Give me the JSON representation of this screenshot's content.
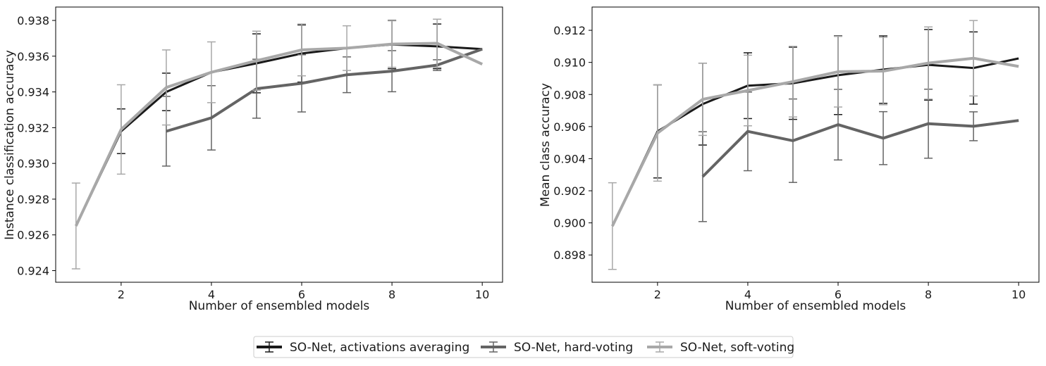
{
  "chart_data": [
    {
      "type": "line",
      "xlabel": "Number of ensembled models",
      "ylabel": "Instance classification accuracy",
      "xlim": [
        0.55,
        10.45
      ],
      "ylim": [
        0.92335,
        0.93875
      ],
      "xticks": [
        2,
        4,
        6,
        8,
        10
      ],
      "xtick_labels": [
        "2",
        "4",
        "6",
        "8",
        "10"
      ],
      "yticks": [
        0.924,
        0.926,
        0.928,
        0.93,
        0.932,
        0.934,
        0.936,
        0.938
      ],
      "ytick_labels": [
        "0.924",
        "0.926",
        "0.928",
        "0.930",
        "0.932",
        "0.934",
        "0.936",
        "0.938"
      ],
      "grid": false,
      "series": [
        {
          "name": "SO-Net, activations averaging",
          "color": "#1a1a1a",
          "x": [
            1,
            2,
            3,
            4,
            5,
            6,
            7,
            8,
            9,
            10
          ],
          "y": [
            0.9265,
            0.9318,
            0.934,
            0.9351,
            0.9356,
            0.93615,
            0.93645,
            0.93665,
            0.93655,
            0.9364
          ],
          "err": [
            null,
            0.00125,
            0.00105,
            null,
            0.00165,
            0.0016,
            null,
            0.00135,
            0.00125,
            null
          ]
        },
        {
          "name": "SO-Net, hard-voting",
          "color": "#646464",
          "x": [
            3,
            4,
            5,
            6,
            7,
            8,
            9,
            10
          ],
          "y": [
            0.9318,
            0.93255,
            0.93418,
            0.93448,
            0.93496,
            0.93516,
            0.9355,
            0.9364
          ],
          "err": [
            0.00195,
            0.0018,
            0.00165,
            0.0016,
            0.001,
            0.00115,
            0.0003,
            null
          ]
        },
        {
          "name": "SO-Net, soft-voting",
          "color": "#a8a8a8",
          "x": [
            1,
            2,
            3,
            4,
            5,
            6,
            7,
            8,
            9,
            10
          ],
          "y": [
            0.9265,
            0.9319,
            0.93425,
            0.9351,
            0.93575,
            0.93635,
            0.93645,
            0.93668,
            0.93672,
            0.93555
          ],
          "err": [
            0.0024,
            0.0025,
            0.0021,
            0.0017,
            0.00165,
            0.00145,
            0.00125,
            0.0013,
            0.00135,
            null
          ]
        }
      ]
    },
    {
      "type": "line",
      "xlabel": "Number of ensembled models",
      "ylabel": "Mean class accuracy",
      "xlim": [
        0.55,
        10.45
      ],
      "ylim": [
        0.8963,
        0.91345
      ],
      "xticks": [
        2,
        4,
        6,
        8,
        10
      ],
      "xtick_labels": [
        "2",
        "4",
        "6",
        "8",
        "10"
      ],
      "yticks": [
        0.898,
        0.9,
        0.902,
        0.904,
        0.906,
        0.908,
        0.91,
        0.912
      ],
      "ytick_labels": [
        "0.898",
        "0.900",
        "0.902",
        "0.904",
        "0.906",
        "0.908",
        "0.910",
        "0.912"
      ],
      "grid": false,
      "series": [
        {
          "name": "SO-Net, activations averaging",
          "color": "#1a1a1a",
          "x": [
            1,
            2,
            3,
            4,
            5,
            6,
            7,
            8,
            9,
            10
          ],
          "y": [
            0.8998,
            0.9057,
            0.9074,
            0.90855,
            0.9087,
            0.9092,
            0.90955,
            0.90985,
            0.90965,
            0.91025
          ],
          "err": [
            null,
            0.0029,
            0.00255,
            0.00205,
            0.00225,
            0.00245,
            0.0021,
            0.0022,
            0.00225,
            null
          ]
        },
        {
          "name": "SO-Net, hard-voting",
          "color": "#646464",
          "x": [
            3,
            4,
            5,
            6,
            7,
            8,
            9,
            10
          ],
          "y": [
            0.90288,
            0.9057,
            0.90512,
            0.90612,
            0.90528,
            0.90618,
            0.90602,
            0.90638
          ],
          "err": [
            0.0028,
            0.00245,
            0.0026,
            0.0022,
            0.00165,
            0.00215,
            0.0009,
            null
          ]
        },
        {
          "name": "SO-Net, soft-voting",
          "color": "#a8a8a8",
          "x": [
            1,
            2,
            3,
            4,
            5,
            6,
            7,
            8,
            9,
            10
          ],
          "y": [
            0.8998,
            0.9056,
            0.9077,
            0.90825,
            0.9088,
            0.90942,
            0.90946,
            0.90996,
            0.91026,
            0.90975
          ],
          "err": [
            0.0027,
            0.003,
            0.00225,
            0.0022,
            0.0022,
            0.0022,
            0.0021,
            0.00225,
            0.00235,
            null
          ]
        }
      ]
    }
  ],
  "legend": {
    "position": "bottom-center",
    "entries": [
      {
        "label": "SO-Net, activations averaging",
        "color": "#1a1a1a"
      },
      {
        "label": "SO-Net, hard-voting",
        "color": "#646464"
      },
      {
        "label": "SO-Net, soft-voting",
        "color": "#a8a8a8"
      }
    ]
  }
}
